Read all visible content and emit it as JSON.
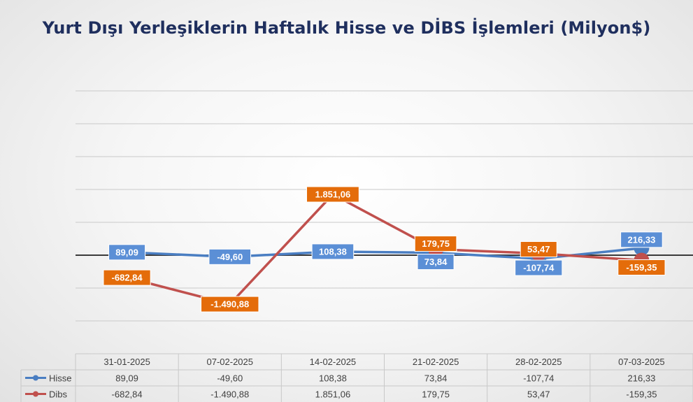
{
  "chart_data": {
    "type": "line",
    "title": "Yurt Dışı Yerleşiklerin Haftalık Hisse ve DİBS İşlemleri (Milyon$)",
    "categories": [
      "31-01-2025",
      "07-02-2025",
      "14-02-2025",
      "21-02-2025",
      "28-02-2025",
      "07-03-2025"
    ],
    "series": [
      {
        "name": "Hisse",
        "color": "#4a7ec2",
        "label_color": "#5b8fd6",
        "values": [
          89.09,
          -49.6,
          108.38,
          73.84,
          -107.74,
          216.33
        ],
        "value_labels": [
          "89,09",
          "-49,60",
          "108,38",
          "73,84",
          "-107,74",
          "216,33"
        ]
      },
      {
        "name": "Dibs",
        "color": "#c0504d",
        "label_color": "#e46c0a",
        "values": [
          -682.84,
          -1490.88,
          1851.06,
          179.75,
          53.47,
          -159.35
        ],
        "value_labels": [
          "-682,84",
          "-1.490,88",
          "1.851,06",
          "179,75",
          "53,47",
          "-159,35"
        ]
      }
    ],
    "ylim": [
      -3000,
      5000
    ],
    "grid": true,
    "legend": "data table below chart"
  }
}
